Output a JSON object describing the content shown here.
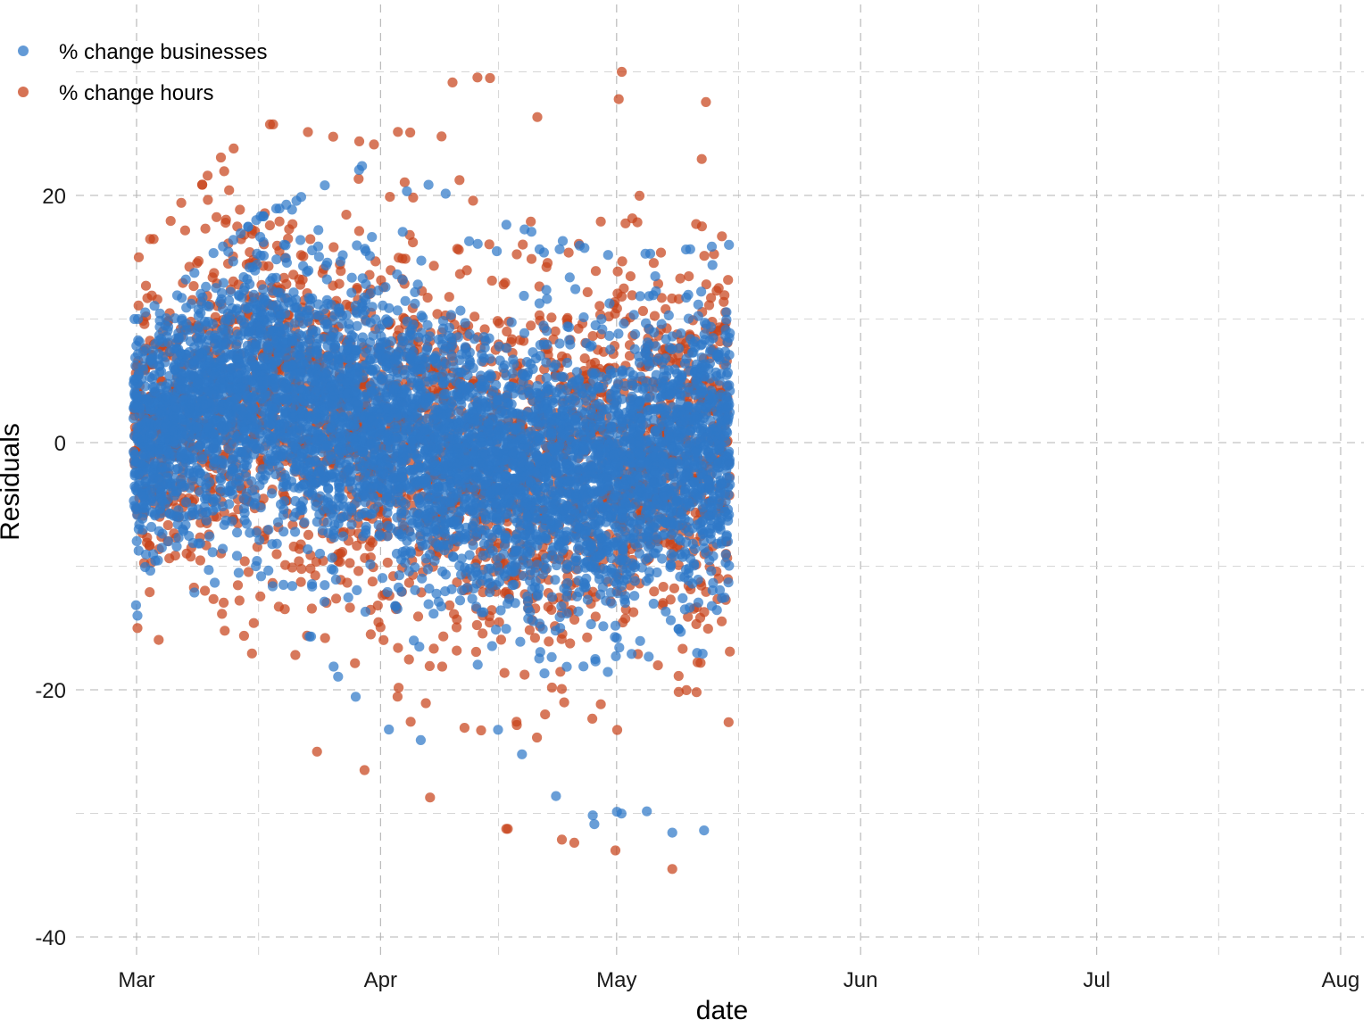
{
  "chart_data": {
    "type": "scatter",
    "title": "",
    "xlabel": "date",
    "ylabel": "Residuals",
    "x_type": "date",
    "xlim": [
      "2020-02-25",
      "2020-08-01"
    ],
    "ylim": [
      -42,
      35
    ],
    "x_ticks": [
      {
        "date": "2020-03-01",
        "label": "Mar"
      },
      {
        "date": "2020-04-01",
        "label": "Apr"
      },
      {
        "date": "2020-05-01",
        "label": "May"
      },
      {
        "date": "2020-06-01",
        "label": "Jun"
      },
      {
        "date": "2020-07-01",
        "label": "Jul"
      },
      {
        "date": "2020-08-01",
        "label": "Aug"
      }
    ],
    "y_ticks": [
      {
        "value": 20,
        "label": "20"
      },
      {
        "value": 0,
        "label": "0"
      },
      {
        "value": -20,
        "label": "-20"
      },
      {
        "value": -40,
        "label": "-40"
      }
    ],
    "grid": true,
    "legend_position": "top-left",
    "data_range": [
      "2020-03-01",
      "2020-05-15"
    ],
    "series": [
      {
        "name": "% change businesses",
        "color": "#2f78c8",
        "daily_summary": [
          {
            "date": "2020-03-01",
            "median": 0,
            "spread": 4,
            "min": -14,
            "max": 10
          },
          {
            "date": "2020-03-16",
            "median": 5,
            "spread": 5,
            "min": -10,
            "max": 18
          },
          {
            "date": "2020-04-01",
            "median": 1,
            "spread": 5,
            "min": -23,
            "max": 23
          },
          {
            "date": "2020-04-15",
            "median": -2,
            "spread": 5,
            "min": -26,
            "max": 18
          },
          {
            "date": "2020-05-01",
            "median": -3,
            "spread": 5,
            "min": -32,
            "max": 15
          },
          {
            "date": "2020-05-15",
            "median": 0,
            "spread": 5,
            "min": -38,
            "max": 16
          }
        ]
      },
      {
        "name": "% change hours",
        "color": "#c8441c",
        "daily_summary": [
          {
            "date": "2020-03-01",
            "median": 1,
            "spread": 5,
            "min": -15,
            "max": 15
          },
          {
            "date": "2020-03-16",
            "median": 4,
            "spread": 7,
            "min": -23,
            "max": 26
          },
          {
            "date": "2020-04-01",
            "median": 1,
            "spread": 7,
            "min": -27,
            "max": 24
          },
          {
            "date": "2020-04-15",
            "median": -2,
            "spread": 7,
            "min": -31,
            "max": 32
          },
          {
            "date": "2020-05-01",
            "median": -2,
            "spread": 7,
            "min": -33,
            "max": 30
          },
          {
            "date": "2020-05-15",
            "median": 0,
            "spread": 7,
            "min": -36,
            "max": 30
          }
        ]
      }
    ]
  }
}
